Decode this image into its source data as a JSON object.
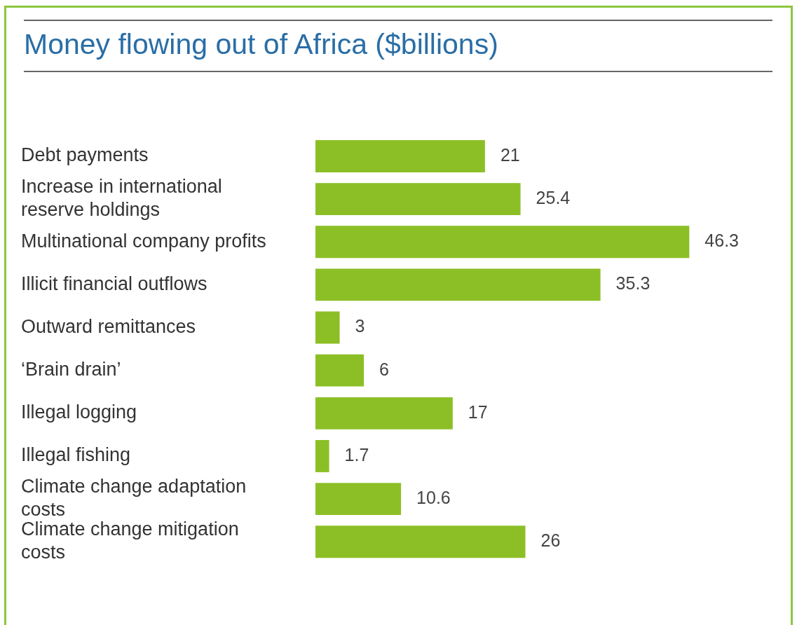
{
  "chart_data": {
    "type": "bar",
    "orientation": "horizontal",
    "title": "Money flowing out of Africa ($billions)",
    "categories": [
      "Debt payments",
      "Increase in international reserve holdings",
      "Multinational company profits",
      "Illicit financial outflows",
      "Outward remittances",
      "‘Brain drain’",
      "Illegal logging",
      "Illegal fishing",
      "Climate change adaptation costs",
      "Climate change mitigation costs"
    ],
    "values": [
      21,
      25.4,
      46.3,
      35.3,
      3,
      6,
      17,
      1.7,
      10.6,
      26
    ],
    "color": "#8cbf26",
    "data_labels": true,
    "legend": false
  }
}
